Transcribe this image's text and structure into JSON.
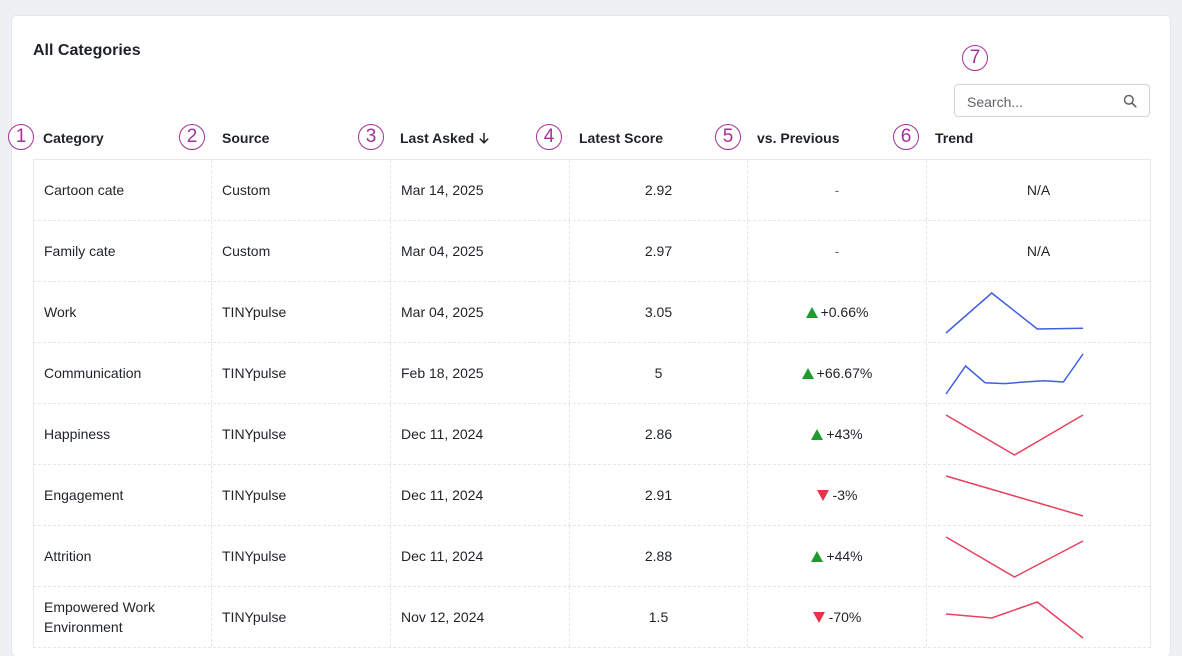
{
  "title": "All Categories",
  "search": {
    "placeholder": "Search..."
  },
  "callouts": [
    "1",
    "2",
    "3",
    "4",
    "5",
    "6",
    "7"
  ],
  "columns": {
    "category": "Category",
    "source": "Source",
    "last_asked": "Last Asked",
    "latest_score": "Latest Score",
    "vs_previous": "vs. Previous",
    "trend": "Trend"
  },
  "sort": {
    "column": "last_asked",
    "direction": "descending"
  },
  "colors": {
    "up": "#1e9a2e",
    "down": "#e6324b",
    "trend_blue": "#3f5fe0",
    "trend_red": "#e8415f",
    "callout": "#a3329a"
  },
  "rows": [
    {
      "category": "Cartoon cate",
      "source": "Custom",
      "last_asked": "Mar 14, 2025",
      "latest_score": "2.92",
      "change": "-",
      "direction": "none",
      "trend_text": "N/A",
      "trend": []
    },
    {
      "category": "Family cate",
      "source": "Custom",
      "last_asked": "Mar 04, 2025",
      "latest_score": "2.97",
      "change": "-",
      "direction": "none",
      "trend_text": "N/A",
      "trend": []
    },
    {
      "category": "Work",
      "source": "TINYpulse",
      "last_asked": "Mar 04, 2025",
      "latest_score": "3.05",
      "change": "+0.66%",
      "direction": "up",
      "trend_color": "blue",
      "trend": [
        0.0,
        1.0,
        0.1,
        0.12
      ]
    },
    {
      "category": "Communication",
      "source": "TINYpulse",
      "last_asked": "Feb 18, 2025",
      "latest_score": "5",
      "change": "+66.67%",
      "direction": "up",
      "trend_color": "blue",
      "trend": [
        0.0,
        0.7,
        0.28,
        0.26,
        0.3,
        0.33,
        0.3,
        1.0
      ]
    },
    {
      "category": "Happiness",
      "source": "TINYpulse",
      "last_asked": "Dec 11, 2024",
      "latest_score": "2.86",
      "change": "+43%",
      "direction": "up",
      "trend_color": "red",
      "trend": [
        1.0,
        0.0,
        1.0
      ]
    },
    {
      "category": "Engagement",
      "source": "TINYpulse",
      "last_asked": "Dec 11, 2024",
      "latest_score": "2.91",
      "change": "-3%",
      "direction": "down",
      "trend_color": "red",
      "trend": [
        1.0,
        0.5,
        0.0
      ]
    },
    {
      "category": "Attrition",
      "source": "TINYpulse",
      "last_asked": "Dec 11, 2024",
      "latest_score": "2.88",
      "change": "+44%",
      "direction": "up",
      "trend_color": "red",
      "trend": [
        1.0,
        0.0,
        0.9
      ]
    },
    {
      "category": "Empowered Work Environment",
      "source": "TINYpulse",
      "last_asked": "Nov 12, 2024",
      "latest_score": "1.5",
      "change": "-70%",
      "direction": "down",
      "trend_color": "red",
      "trend": [
        0.6,
        0.5,
        0.9,
        0.0
      ]
    }
  ]
}
